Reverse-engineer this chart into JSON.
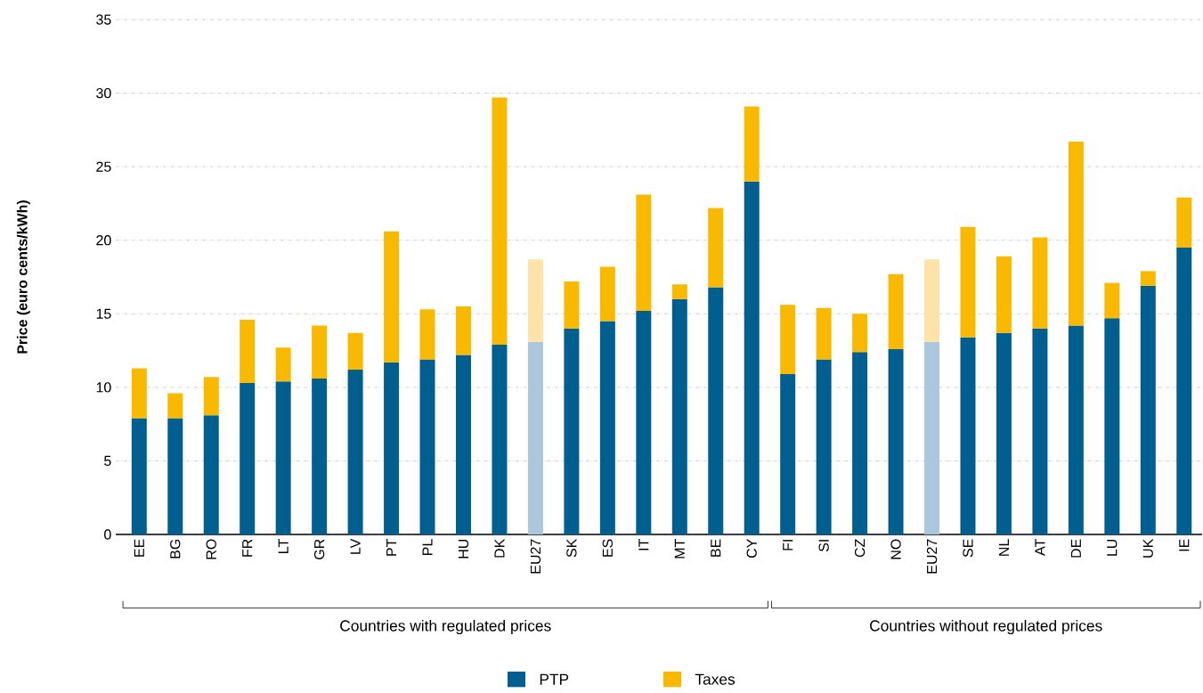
{
  "chart_data": {
    "type": "bar",
    "stacked": true,
    "ylabel": "Price (euro cents/kWh)",
    "categories": [
      "EE",
      "BG",
      "RO",
      "FR",
      "LT",
      "GR",
      "LV",
      "PT",
      "PL",
      "HU",
      "DK",
      "EU27",
      "SK",
      "ES",
      "IT",
      "MT",
      "BE",
      "CY",
      "FI",
      "SI",
      "CZ",
      "NO",
      "EU27",
      "SE",
      "NL",
      "AT",
      "DE",
      "LU",
      "UK",
      "IE"
    ],
    "series": [
      {
        "name": "PTP",
        "color": "#005f8f",
        "values": [
          7.9,
          7.9,
          8.1,
          10.3,
          10.4,
          10.6,
          11.2,
          11.7,
          11.9,
          12.2,
          12.9,
          13.1,
          14.0,
          14.5,
          15.2,
          16.0,
          16.8,
          24.0,
          10.9,
          11.9,
          12.4,
          12.6,
          13.1,
          13.4,
          13.7,
          14.0,
          14.2,
          14.7,
          16.9,
          19.5
        ],
        "colors": [
          "#005f8f",
          "#005f8f",
          "#005f8f",
          "#005f8f",
          "#005f8f",
          "#005f8f",
          "#005f8f",
          "#005f8f",
          "#005f8f",
          "#005f8f",
          "#005f8f",
          "#abc7dc",
          "#005f8f",
          "#005f8f",
          "#005f8f",
          "#005f8f",
          "#005f8f",
          "#005f8f",
          "#005f8f",
          "#005f8f",
          "#005f8f",
          "#005f8f",
          "#abc7dc",
          "#005f8f",
          "#005f8f",
          "#005f8f",
          "#005f8f",
          "#005f8f",
          "#005f8f",
          "#005f8f"
        ]
      },
      {
        "name": "Taxes",
        "color": "#f9b900",
        "values": [
          3.4,
          1.7,
          2.6,
          4.3,
          2.3,
          3.6,
          2.5,
          8.9,
          3.4,
          3.3,
          16.8,
          5.6,
          3.2,
          3.7,
          7.9,
          1.0,
          5.4,
          5.1,
          4.7,
          3.5,
          2.6,
          5.1,
          5.6,
          7.5,
          5.2,
          6.2,
          12.5,
          2.4,
          1.0,
          3.4
        ],
        "colors": [
          "#f9b900",
          "#f9b900",
          "#f9b900",
          "#f9b900",
          "#f9b900",
          "#f9b900",
          "#f9b900",
          "#f9b900",
          "#f9b900",
          "#f9b900",
          "#f9b900",
          "#fde3a7",
          "#f9b900",
          "#f9b900",
          "#f9b900",
          "#f9b900",
          "#f9b900",
          "#f9b900",
          "#f9b900",
          "#f9b900",
          "#f9b900",
          "#f9b900",
          "#fde3a7",
          "#f9b900",
          "#f9b900",
          "#f9b900",
          "#f9b900",
          "#f9b900",
          "#f9b900",
          "#f9b900"
        ]
      }
    ],
    "ylim": [
      0,
      35
    ],
    "yticks": [
      0,
      5,
      10,
      15,
      20,
      25,
      30,
      35
    ],
    "grid": "y",
    "legend": "bottom",
    "annotations": [
      "Countries with regulated prices",
      "Countries without regulated prices"
    ]
  }
}
